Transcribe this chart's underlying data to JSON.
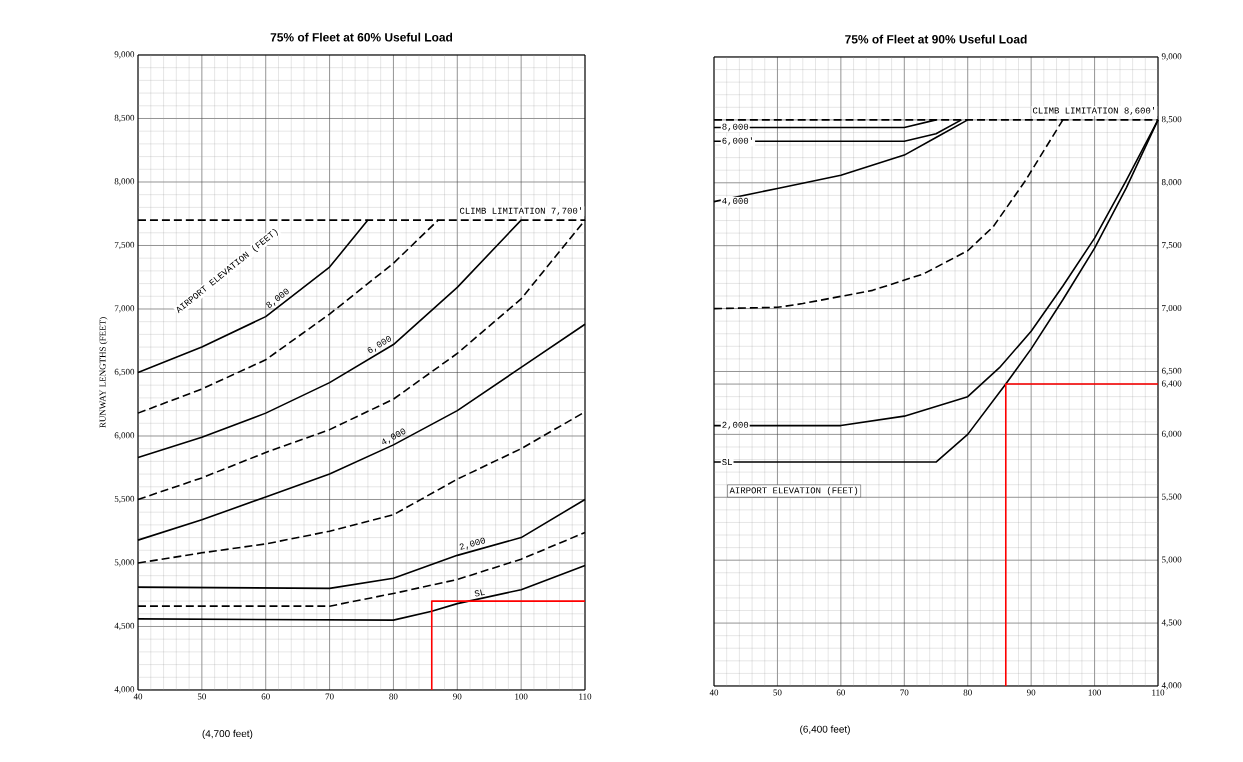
{
  "chart_data": [
    {
      "type": "line",
      "title": "75% of Fleet at 60% Useful Load",
      "ylabel": "RUNWAY LENGTHS (FEET)",
      "xlim": [
        40,
        110
      ],
      "ylim": [
        4000,
        9000
      ],
      "xticks": [
        40,
        50,
        60,
        70,
        80,
        90,
        100,
        110
      ],
      "yticks": [
        {
          "value": 4000,
          "label": "4,000"
        },
        {
          "value": 4500,
          "label": "4,500"
        },
        {
          "value": 5000,
          "label": "5,000"
        },
        {
          "value": 5500,
          "label": "5,500"
        },
        {
          "value": 6000,
          "label": "6,000"
        },
        {
          "value": 6500,
          "label": "6,500"
        },
        {
          "value": 7000,
          "label": "7,000"
        },
        {
          "value": 7500,
          "label": "7,500"
        },
        {
          "value": 8000,
          "label": "8,000"
        },
        {
          "value": 8500,
          "label": "8,500"
        },
        {
          "value": 9000,
          "label": "9,000"
        }
      ],
      "grid": true,
      "marker": "none",
      "series": [
        {
          "name": "8,000",
          "color": "#000000",
          "line_style": "solid",
          "x": [
            40,
            50,
            60,
            70,
            76
          ],
          "values": [
            6500,
            6700,
            6940,
            7330,
            7700
          ]
        },
        {
          "color": "#000000",
          "line_style": "dashed",
          "x": [
            40,
            50,
            60,
            70,
            80,
            87
          ],
          "values": [
            6180,
            6370,
            6600,
            6960,
            7360,
            7700
          ]
        },
        {
          "name": "6,000",
          "color": "#000000",
          "line_style": "solid",
          "x": [
            40,
            50,
            60,
            70,
            80,
            90,
            100
          ],
          "values": [
            5830,
            5990,
            6180,
            6420,
            6720,
            7170,
            7700
          ]
        },
        {
          "color": "#000000",
          "line_style": "dashed",
          "x": [
            40,
            50,
            60,
            70,
            80,
            90,
            100,
            110
          ],
          "values": [
            5500,
            5670,
            5870,
            6050,
            6290,
            6650,
            7080,
            7700
          ]
        },
        {
          "name": "4,000",
          "color": "#000000",
          "line_style": "solid",
          "x": [
            40,
            50,
            60,
            70,
            80,
            90,
            100,
            110
          ],
          "values": [
            5180,
            5340,
            5520,
            5700,
            5930,
            6200,
            6540,
            6880
          ]
        },
        {
          "color": "#000000",
          "line_style": "dashed",
          "x": [
            40,
            50,
            60,
            70,
            80,
            90,
            100,
            110
          ],
          "values": [
            5000,
            5080,
            5150,
            5250,
            5380,
            5660,
            5900,
            6190
          ]
        },
        {
          "name": "2,000",
          "color": "#000000",
          "line_style": "solid",
          "x": [
            40,
            70,
            80,
            90,
            100,
            110
          ],
          "values": [
            4810,
            4800,
            4880,
            5060,
            5200,
            5500
          ]
        },
        {
          "color": "#000000",
          "line_style": "dashed",
          "x": [
            40,
            70,
            80,
            90,
            100,
            110
          ],
          "values": [
            4660,
            4660,
            4760,
            4870,
            5030,
            5240
          ]
        },
        {
          "name": "SL",
          "color": "#000000",
          "line_style": "solid",
          "x": [
            40,
            80,
            86,
            90,
            100,
            110
          ],
          "values": [
            4560,
            4550,
            4620,
            4680,
            4790,
            4980
          ]
        },
        {
          "color": "#ff0000",
          "line_style": "solid",
          "x": [
            86,
            86,
            110
          ],
          "values": [
            4000,
            4700,
            4700
          ]
        }
      ],
      "ref_lines": [
        {
          "axis": "y",
          "value": 7700,
          "label": "CLIMB LIMITATION 7,700'",
          "line_style": "dashed"
        }
      ],
      "annotations": [
        "AIRPORT ELEVATION (FEET)",
        "(4,700 feet)"
      ]
    },
    {
      "type": "line",
      "title": "75% of Fleet at 90% Useful Load",
      "xlim": [
        40,
        110
      ],
      "ylim": [
        4000,
        9000
      ],
      "xticks": [
        40,
        50,
        60,
        70,
        80,
        90,
        100,
        110
      ],
      "yticks": [
        {
          "value": 4000,
          "label": "4,000"
        },
        {
          "value": 4500,
          "label": "4,500"
        },
        {
          "value": 5000,
          "label": "5,000"
        },
        {
          "value": 5500,
          "label": "5,500"
        },
        {
          "value": 6000,
          "label": "6,000"
        },
        {
          "value": 6400,
          "label": "6,400"
        },
        {
          "value": 6500,
          "label": "6,500"
        },
        {
          "value": 7000,
          "label": "7,000"
        },
        {
          "value": 7500,
          "label": "7,500"
        },
        {
          "value": 8000,
          "label": "8,000"
        },
        {
          "value": 8500,
          "label": "8,500"
        },
        {
          "value": 9000,
          "label": "9,000"
        }
      ],
      "grid": true,
      "marker": "none",
      "series": [
        {
          "name": "8,000",
          "color": "#000000",
          "line_style": "solid",
          "x": [
            40,
            70,
            75
          ],
          "values": [
            8440,
            8440,
            8500
          ]
        },
        {
          "name": "6,000'",
          "color": "#000000",
          "line_style": "solid",
          "x": [
            40,
            70,
            75,
            79
          ],
          "values": [
            8330,
            8330,
            8390,
            8500
          ]
        },
        {
          "name": "4,000",
          "color": "#000000",
          "line_style": "solid",
          "x": [
            40,
            50,
            60,
            70,
            75,
            80
          ],
          "values": [
            7850,
            7955,
            8060,
            8220,
            8360,
            8500
          ]
        },
        {
          "color": "#000000",
          "line_style": "dashed",
          "x": [
            40,
            50,
            54,
            65,
            73,
            80,
            84,
            89,
            95
          ],
          "values": [
            7000,
            7010,
            7040,
            7145,
            7275,
            7460,
            7650,
            8010,
            8500
          ]
        },
        {
          "name": "2,000",
          "color": "#000000",
          "line_style": "solid",
          "x": [
            40,
            60,
            70,
            80,
            85,
            90,
            95,
            100,
            105,
            110
          ],
          "values": [
            6070,
            6070,
            6145,
            6300,
            6530,
            6820,
            7180,
            7560,
            8020,
            8500
          ]
        },
        {
          "name": "SL",
          "color": "#000000",
          "line_style": "solid",
          "x": [
            40,
            75,
            80,
            86,
            90,
            95,
            100,
            105,
            110
          ],
          "values": [
            5780,
            5780,
            6000,
            6400,
            6680,
            7070,
            7480,
            7960,
            8500
          ]
        },
        {
          "color": "#ff0000",
          "line_style": "solid",
          "x": [
            86,
            86,
            110
          ],
          "values": [
            4000,
            6400,
            6400
          ]
        }
      ],
      "ref_lines": [
        {
          "axis": "y",
          "value": 8500,
          "label": "CLIMB LIMITATION 8,600'",
          "line_style": "dashed"
        }
      ],
      "annotations": [
        "AIRPORT ELEVATION (FEET)",
        "(6,400 feet)"
      ]
    }
  ]
}
